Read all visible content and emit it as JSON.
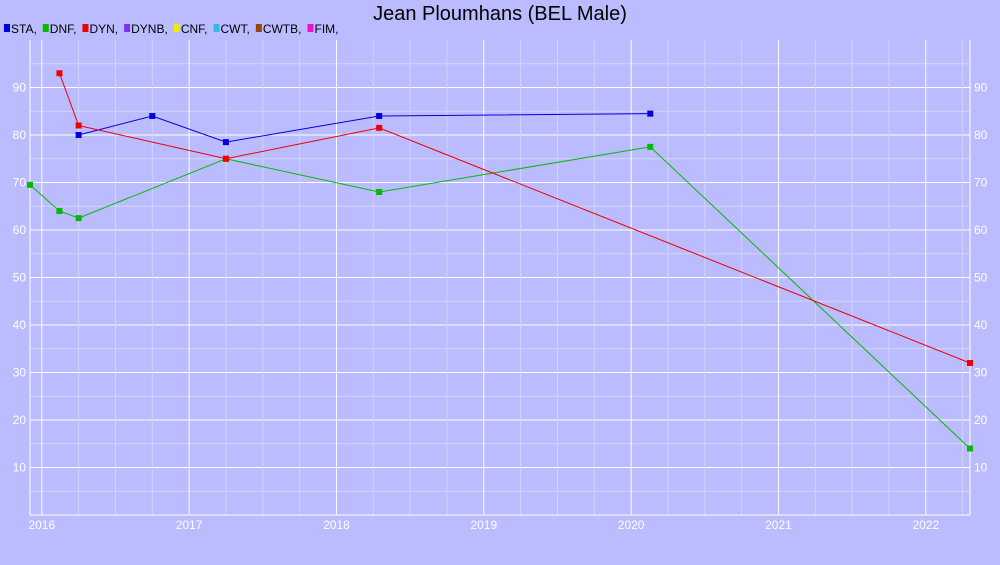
{
  "chart_data": {
    "type": "line",
    "title": "Jean Ploumhans (BEL Male)",
    "xlabel": "",
    "ylabel": "",
    "xlim": [
      2015.92,
      2022.3
    ],
    "ylim": [
      0,
      100
    ],
    "x_ticks": [
      "2016",
      "2017",
      "2018",
      "2019",
      "2020",
      "2021",
      "2022"
    ],
    "y_ticks": [
      "10",
      "20",
      "30",
      "40",
      "50",
      "60",
      "70",
      "80",
      "90"
    ],
    "grid": true,
    "legend_placement": "top-left",
    "legend": [
      {
        "label": "STA,",
        "color": "#0000dd"
      },
      {
        "label": "DNF,",
        "color": "#00bb00"
      },
      {
        "label": "DYN,",
        "color": "#ee0000"
      },
      {
        "label": "DYNB,",
        "color": "#7733ee"
      },
      {
        "label": "CNF,",
        "color": "#eeee00"
      },
      {
        "label": "CWT,",
        "color": "#33bbdd"
      },
      {
        "label": "CWTB,",
        "color": "#994411"
      },
      {
        "label": "FIM,",
        "color": "#ee11cc"
      }
    ],
    "series": [
      {
        "name": "STA",
        "color": "#0000dd",
        "points": [
          [
            2016.25,
            80
          ],
          [
            2016.75,
            84
          ],
          [
            2017.25,
            78.5
          ],
          [
            2018.29,
            84
          ],
          [
            2020.13,
            84.5
          ]
        ]
      },
      {
        "name": "DNF",
        "color": "#00bb00",
        "points": [
          [
            2015.92,
            69.5
          ],
          [
            2016.12,
            64
          ],
          [
            2016.25,
            62.5
          ],
          [
            2017.25,
            75
          ],
          [
            2018.29,
            68
          ],
          [
            2020.13,
            77.5
          ],
          [
            2022.3,
            14
          ]
        ]
      },
      {
        "name": "DYN",
        "color": "#ee0000",
        "points": [
          [
            2016.12,
            93
          ],
          [
            2016.25,
            82
          ],
          [
            2017.25,
            75
          ],
          [
            2018.29,
            81.5
          ],
          [
            2022.3,
            32
          ]
        ]
      }
    ]
  }
}
